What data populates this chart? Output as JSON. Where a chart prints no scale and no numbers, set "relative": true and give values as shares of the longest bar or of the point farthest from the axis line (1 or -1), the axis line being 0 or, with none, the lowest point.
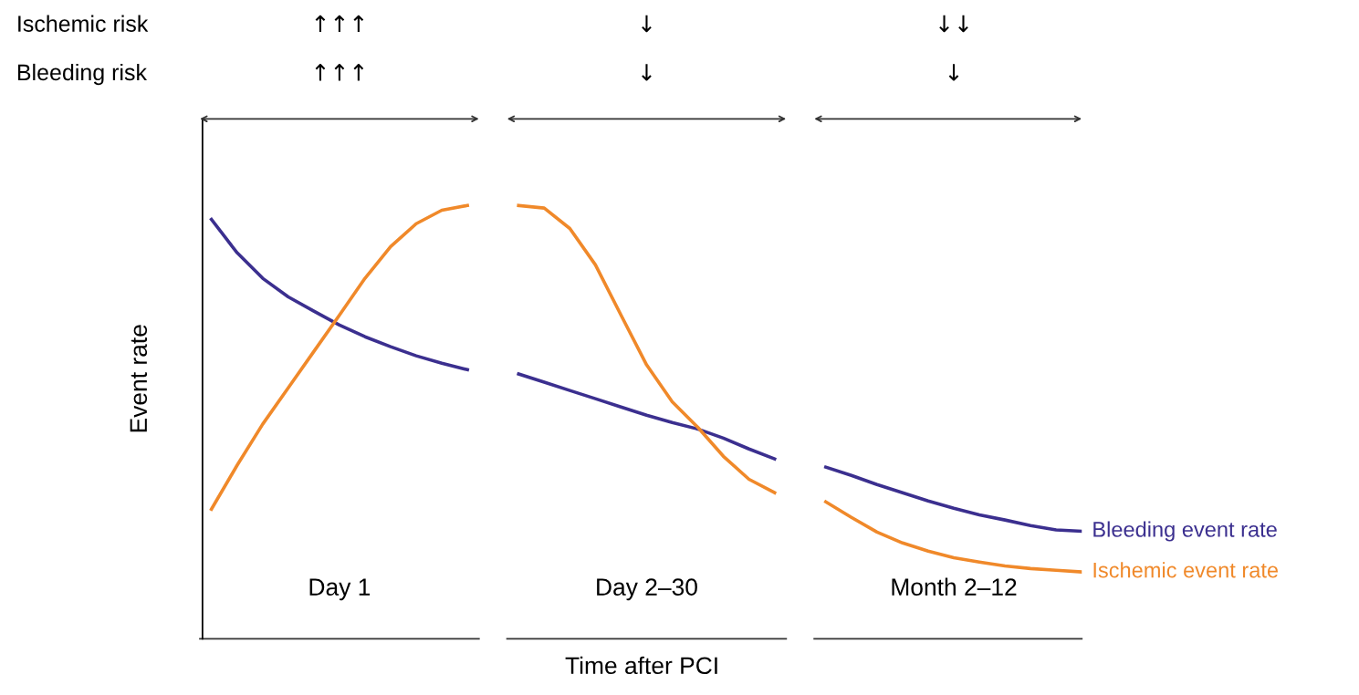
{
  "chart_data": {
    "type": "line",
    "relative": true,
    "xlabel": "Time after PCI",
    "ylabel": "Event rate",
    "legend": false,
    "marker": "none",
    "line_style": "solid",
    "categories": [
      null,
      null,
      null,
      null,
      null,
      "Day 1",
      null,
      null,
      null,
      null,
      null,
      null,
      null,
      null,
      null,
      null,
      null,
      "Day 2–30",
      null,
      null,
      null,
      null,
      null,
      null,
      null,
      null,
      null,
      null,
      null,
      "Month 2–12",
      null,
      null,
      null,
      null,
      null
    ],
    "annotations": [
      "Ischemic risk",
      "↑↑↑",
      "↓",
      "↓↓",
      "Bleeding risk",
      "↑↑↑",
      "↓",
      "↓"
    ],
    "series": [
      {
        "name": "Bleeding event rate",
        "color": "#3b2f8f",
        "values": [
          0.968,
          0.891,
          0.832,
          0.789,
          0.756,
          0.724,
          0.697,
          0.674,
          0.653,
          0.636,
          0.621,
          null,
          0.611,
          0.592,
          0.573,
          0.554,
          0.535,
          0.516,
          0.499,
          0.484,
          0.463,
          0.438,
          0.415,
          null,
          0.396,
          0.377,
          0.356,
          0.337,
          0.318,
          0.301,
          0.286,
          0.274,
          0.261,
          0.251,
          0.248
        ]
      },
      {
        "name": "Ischemic event rate",
        "color": "#f0892a",
        "values": [
          0.299,
          0.4,
          0.495,
          0.579,
          0.663,
          0.747,
          0.832,
          0.905,
          0.958,
          0.989,
          1.0,
          null,
          1.0,
          0.994,
          0.947,
          0.863,
          0.747,
          0.632,
          0.547,
          0.488,
          0.421,
          0.368,
          0.337,
          null,
          0.316,
          0.28,
          0.246,
          0.221,
          0.202,
          0.187,
          0.177,
          0.168,
          0.162,
          0.158,
          0.154
        ]
      }
    ]
  }
}
